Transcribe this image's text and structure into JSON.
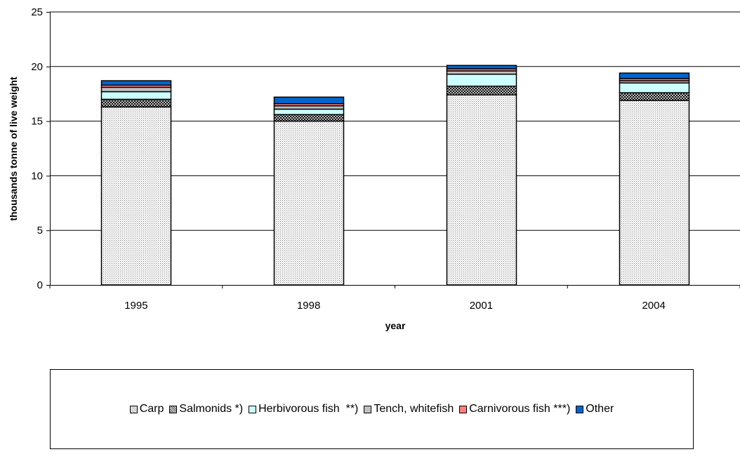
{
  "chart_data": {
    "type": "bar",
    "stacked": true,
    "categories": [
      "1995",
      "1998",
      "2001",
      "2004"
    ],
    "series": [
      {
        "name": "Carp",
        "values": [
          16.3,
          15.0,
          17.4,
          16.9
        ],
        "color": "#e8e8e8",
        "pattern": "fine-dots"
      },
      {
        "name": "Salmonids *)",
        "values": [
          0.7,
          0.6,
          0.8,
          0.7
        ],
        "color": "#9a9a9a",
        "pattern": "crosshatch"
      },
      {
        "name": "Herbivorous fish  **)",
        "values": [
          0.7,
          0.5,
          1.1,
          0.9
        ],
        "color": "#ccffff",
        "pattern": "solid"
      },
      {
        "name": "Tench, whitefish",
        "values": [
          0.4,
          0.3,
          0.3,
          0.2
        ],
        "color": "#c0c0c0",
        "pattern": "solid"
      },
      {
        "name": "Carnivorous fish ***)",
        "values": [
          0.2,
          0.2,
          0.2,
          0.2
        ],
        "color": "#ff8080",
        "pattern": "solid"
      },
      {
        "name": "Other",
        "values": [
          0.4,
          0.6,
          0.3,
          0.5
        ],
        "color": "#0066cc",
        "pattern": "solid"
      }
    ],
    "xlabel": "year",
    "ylabel": "thousands tonne of live weight",
    "ylim": [
      0,
      25
    ],
    "yticks": [
      0,
      5,
      10,
      15,
      20,
      25
    ],
    "grid": true,
    "legend_position": "bottom"
  }
}
